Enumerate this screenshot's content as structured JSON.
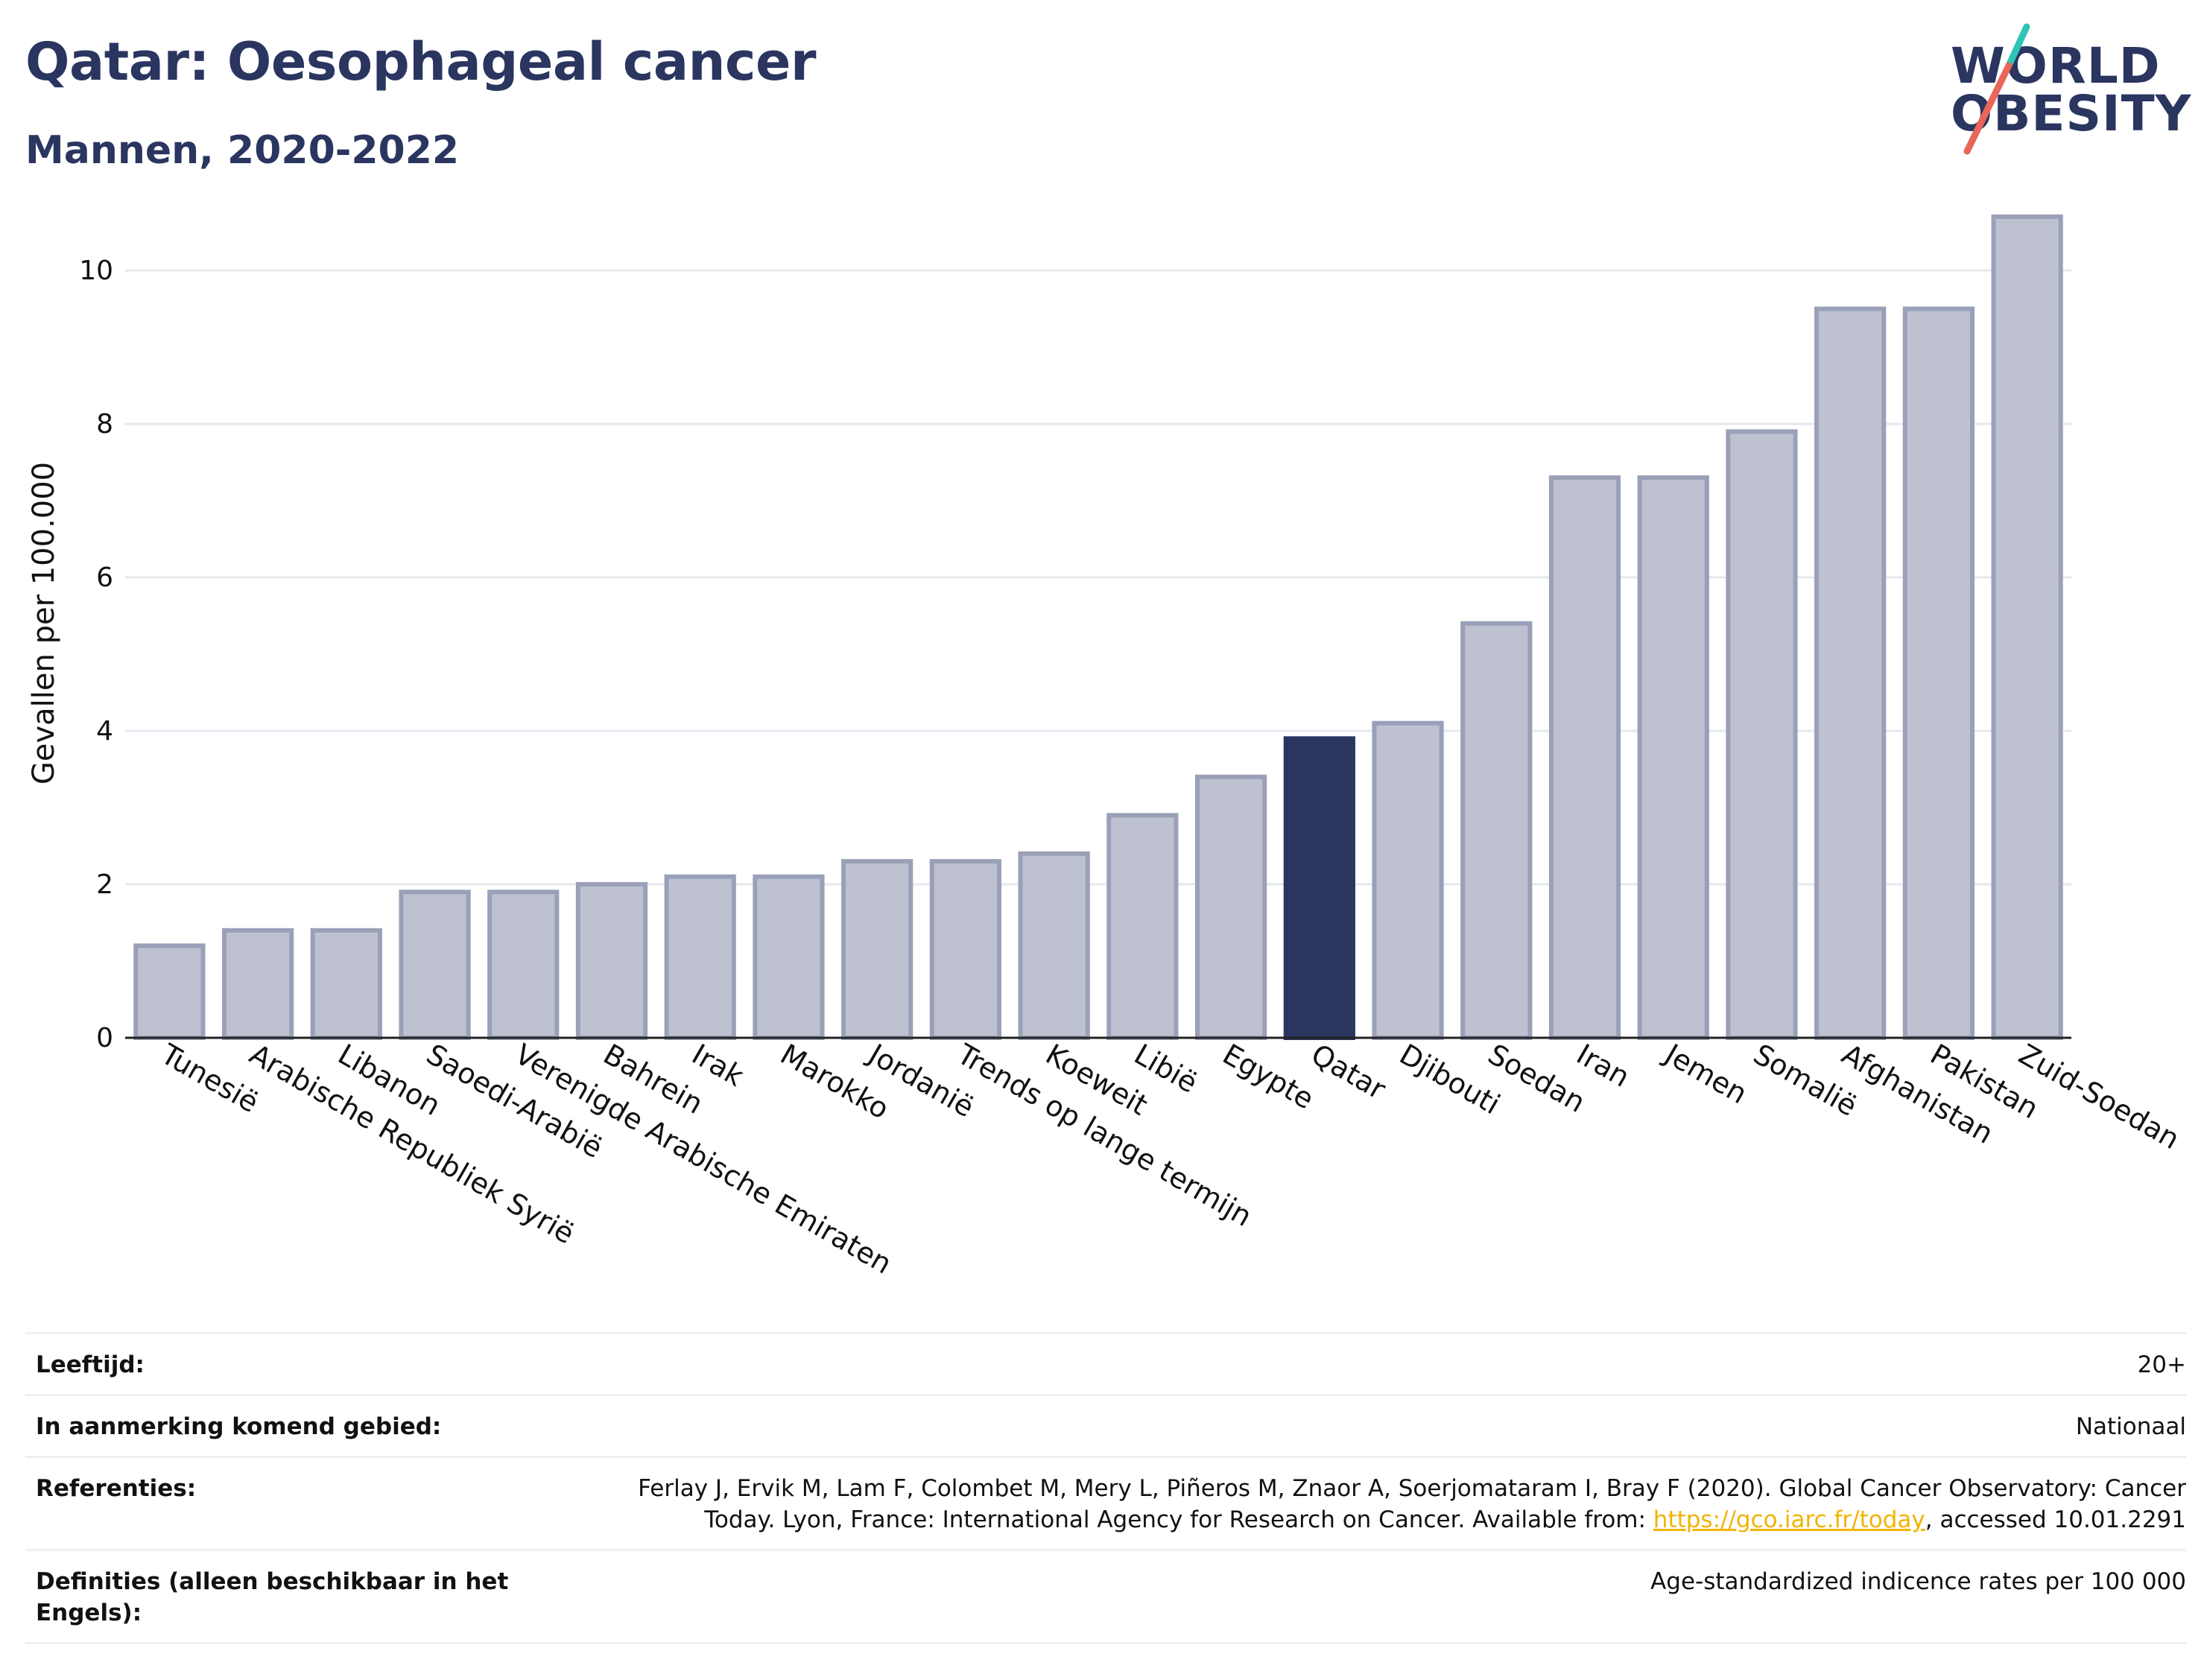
{
  "header": {
    "title": "Qatar: Oesophageal cancer",
    "subtitle": "Mannen, 2020-2022"
  },
  "logo": {
    "line1": "WORLD",
    "line2": "OBESITY",
    "slash_colors": [
      "#2ec4b6",
      "#e8665a"
    ]
  },
  "chart_data": {
    "type": "bar",
    "ylabel": "Gevallen per 100.000",
    "ylim": [
      0,
      11
    ],
    "yticks": [
      0,
      2,
      4,
      6,
      8,
      10
    ],
    "grid": true,
    "highlight": "Qatar",
    "colors": {
      "bar": "#bec2d0",
      "bar_border": "#9aa0b8",
      "highlight": "#2a3560",
      "grid": "#e6e8ef"
    },
    "categories": [
      "Tunesië",
      "Arabische Republiek Syrië",
      "Libanon",
      "Saoedi-Arabië",
      "Verenigde Arabische Emiraten",
      "Bahrein",
      "Irak",
      "Marokko",
      "Jordanië",
      "Trends op lange termijn",
      "Koeweit",
      "Libië",
      "Egypte",
      "Qatar",
      "Djibouti",
      "Soedan",
      "Iran",
      "Jemen",
      "Somalië",
      "Afghanistan",
      "Pakistan",
      "Zuid-Soedan"
    ],
    "values": [
      1.2,
      1.4,
      1.4,
      1.9,
      1.9,
      2.0,
      2.1,
      2.1,
      2.3,
      2.3,
      2.4,
      2.9,
      3.4,
      3.9,
      4.1,
      5.4,
      7.3,
      7.3,
      7.9,
      9.5,
      9.5,
      10.7
    ]
  },
  "info": [
    {
      "label": "Leeftijd:",
      "value": "20+"
    },
    {
      "label": "In aanmerking komend gebied:",
      "value": "Nationaal"
    },
    {
      "label": "Referenties:",
      "value_before": "Ferlay J, Ervik M, Lam F, Colombet M, Mery L, Piñeros M, Znaor A, Soerjomataram I, Bray F (2020). Global Cancer Observatory: Cancer Today. Lyon, France: International Agency for Research on Cancer. Available from: ",
      "link": "https://gco.iarc.fr/today",
      "value_after": ", accessed 10.01.2291"
    },
    {
      "label": "Definities (alleen beschikbaar in het Engels):",
      "value": "Age-standardized indicence rates per 100 000"
    }
  ]
}
